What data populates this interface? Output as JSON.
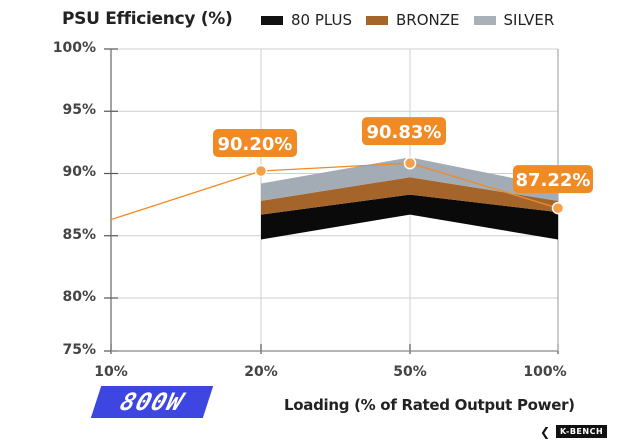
{
  "chart_data": {
    "type": "line",
    "title": "PSU Efficiency (%)",
    "xlabel": "Loading (% of Rated Output Power)",
    "ylabel": "",
    "categories": [
      "10%",
      "20%",
      "50%",
      "100%"
    ],
    "y_ticks": [
      "100%",
      "95%",
      "90%",
      "85%",
      "80%",
      "75%"
    ],
    "y_tick_values": [
      100,
      95,
      90,
      85,
      80,
      75
    ],
    "ylim": [
      75,
      100
    ],
    "grid": true,
    "legend_position": "top",
    "legend": [
      {
        "name": "80 PLUS",
        "color": "#111111"
      },
      {
        "name": "BRONZE",
        "color": "#a5652a"
      },
      {
        "name": "SILVER",
        "color": "#a9b0b8"
      }
    ],
    "bands": [
      {
        "name": "80 PLUS",
        "color": "#0a0a0a",
        "categories": [
          "20%",
          "50%",
          "100%"
        ],
        "lower": [
          84.7,
          86.7,
          84.7
        ],
        "upper": [
          86.7,
          88.3,
          86.9
        ]
      },
      {
        "name": "BRONZE",
        "color": "#a5652a",
        "categories": [
          "20%",
          "50%",
          "100%"
        ],
        "lower": [
          86.7,
          88.3,
          86.9
        ],
        "upper": [
          87.8,
          89.7,
          87.8
        ]
      },
      {
        "name": "SILVER",
        "color": "#a3abb5",
        "categories": [
          "20%",
          "50%",
          "100%"
        ],
        "lower": [
          87.8,
          89.7,
          87.8
        ],
        "upper": [
          89.2,
          91.3,
          88.9
        ]
      }
    ],
    "series": [
      {
        "name": "800W PSU",
        "color": "#f08a24",
        "values": [
          86.3,
          90.2,
          90.83,
          87.22
        ]
      }
    ],
    "data_labels": [
      {
        "category": "20%",
        "text": "90.20%"
      },
      {
        "category": "50%",
        "text": "90.83%"
      },
      {
        "category": "100%",
        "text": "87.22%"
      }
    ]
  },
  "badge": {
    "text": "800W"
  },
  "logo": {
    "text": "K-BENCH"
  }
}
